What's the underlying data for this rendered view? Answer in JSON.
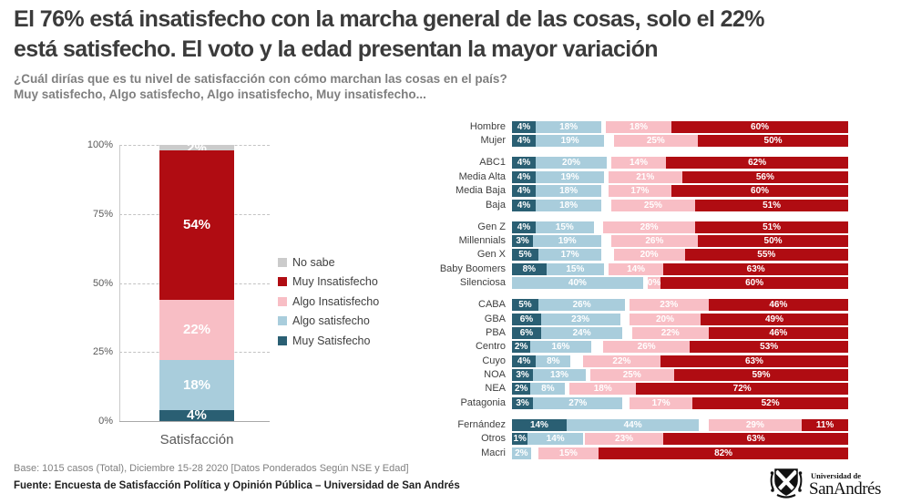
{
  "header": {
    "title_line1": "El 76% está insatisfecho con la marcha general de las cosas, solo el 22%",
    "title_line2": "está satisfecho. El voto y la edad presentan la mayor variación",
    "subtitle_line1": "¿Cuál dirías que es tu nivel de satisfacción con cómo marchan las cosas en el país?",
    "subtitle_line2": "Muy satisfecho, Algo satisfecho, Algo insatisfecho, Muy insatisfecho..."
  },
  "footer": {
    "base": "Base: 1015 casos (Total), Diciembre 15-28 2020 [Datos Ponderados Según NSE y Edad]",
    "fuente": "Fuente: Encuesta de Satisfacción Política y Opinión Pública – Universidad de San Andrés"
  },
  "logo": {
    "small": "Universidad de",
    "large": "SanAndrés",
    "icon": "university-crest-icon"
  },
  "colors": {
    "muy_satisfecho": "#2A5F73",
    "algo_satisfecho": "#A9CDDC",
    "algo_insatisfecho": "#F8BEC5",
    "muy_insatisfecho": "#B00C12",
    "no_sabe": "#CBCBCB"
  },
  "legend": [
    {
      "label": "No sabe",
      "color_key": "no_sabe"
    },
    {
      "label": "Muy Insatisfecho",
      "color_key": "muy_insatisfecho"
    },
    {
      "label": "Algo Insatisfecho",
      "color_key": "algo_insatisfecho"
    },
    {
      "label": "Algo satisfecho",
      "color_key": "algo_satisfecho"
    },
    {
      "label": "Muy Satisfecho",
      "color_key": "muy_satisfecho"
    }
  ],
  "chart_data": [
    {
      "type": "bar",
      "stacked": true,
      "title": "",
      "xlabel": "Satisfacción",
      "ylabel": "",
      "ylim": [
        0,
        100
      ],
      "yticks": [
        0,
        25,
        50,
        75,
        100
      ],
      "ytick_labels": [
        "0%",
        "25%",
        "50%",
        "75%",
        "100%"
      ],
      "grid": "dashed-horizontal",
      "legend_position": "right",
      "categories": [
        "Satisfacción"
      ],
      "series": [
        {
          "name": "Muy Satisfecho",
          "color_key": "muy_satisfecho",
          "values": [
            4
          ],
          "data_label": "4%"
        },
        {
          "name": "Algo satisfecho",
          "color_key": "algo_satisfecho",
          "values": [
            18
          ],
          "data_label": "18%"
        },
        {
          "name": "Algo Insatisfecho",
          "color_key": "algo_insatisfecho",
          "values": [
            22
          ],
          "data_label": "22%"
        },
        {
          "name": "Muy Insatisfecho",
          "color_key": "muy_insatisfecho",
          "values": [
            54
          ],
          "data_label": "54%"
        },
        {
          "name": "No sabe",
          "color_key": "no_sabe",
          "values": [
            2
          ],
          "data_label": "2%"
        }
      ]
    },
    {
      "type": "bar",
      "orientation": "horizontal",
      "stacked": true,
      "normalized": true,
      "series_names": [
        "Muy Satisfecho",
        "Algo satisfecho",
        "Algo Insatisfecho",
        "Muy Insatisfecho"
      ],
      "groups": [
        {
          "name": "genero",
          "rows": [
            {
              "label": "Hombre",
              "values": [
                4,
                18,
                18,
                60
              ],
              "labels": [
                "4%",
                "18%",
                "18%",
                "60%"
              ]
            },
            {
              "label": "Mujer",
              "values": [
                4,
                19,
                25,
                50
              ],
              "labels": [
                "4%",
                "19%",
                "25%",
                "50%"
              ]
            }
          ]
        },
        {
          "name": "nse",
          "rows": [
            {
              "label": "ABC1",
              "values": [
                4,
                20,
                14,
                62
              ],
              "labels": [
                "4%",
                "20%",
                "14%",
                "62%"
              ]
            },
            {
              "label": "Media Alta",
              "values": [
                4,
                19,
                21,
                56
              ],
              "labels": [
                "4%",
                "19%",
                "21%",
                "56%"
              ]
            },
            {
              "label": "Media Baja",
              "values": [
                4,
                18,
                17,
                60
              ],
              "labels": [
                "4%",
                "18%",
                "17%",
                "60%"
              ]
            },
            {
              "label": "Baja",
              "values": [
                4,
                18,
                25,
                51
              ],
              "labels": [
                "4%",
                "18%",
                "25%",
                "51%"
              ]
            }
          ]
        },
        {
          "name": "edad",
          "rows": [
            {
              "label": "Gen Z",
              "values": [
                4,
                15,
                28,
                51
              ],
              "labels": [
                "4%",
                "15%",
                "28%",
                "51%"
              ]
            },
            {
              "label": "Millennials",
              "values": [
                3,
                19,
                26,
                50
              ],
              "labels": [
                "3%",
                "19%",
                "26%",
                "50%"
              ]
            },
            {
              "label": "Gen X",
              "values": [
                5,
                17,
                20,
                55
              ],
              "labels": [
                "5%",
                "17%",
                "20%",
                "55%"
              ]
            },
            {
              "label": "Baby Boomers",
              "values": [
                8,
                15,
                14,
                63
              ],
              "labels": [
                "8%",
                "15%",
                "14%",
                "63%"
              ]
            },
            {
              "label": "Silenciosa",
              "values": [
                0,
                40,
                0,
                60
              ],
              "labels": [
                "",
                "40%",
                "0%",
                "60%"
              ]
            }
          ]
        },
        {
          "name": "region",
          "rows": [
            {
              "label": "CABA",
              "values": [
                5,
                26,
                23,
                46
              ],
              "labels": [
                "5%",
                "26%",
                "23%",
                "46%"
              ]
            },
            {
              "label": "GBA",
              "values": [
                6,
                23,
                20,
                49
              ],
              "labels": [
                "6%",
                "23%",
                "20%",
                "49%"
              ]
            },
            {
              "label": "PBA",
              "values": [
                6,
                24,
                22,
                46
              ],
              "labels": [
                "6%",
                "24%",
                "22%",
                "46%"
              ]
            },
            {
              "label": "Centro",
              "values": [
                2,
                16,
                26,
                53
              ],
              "labels": [
                "2%",
                "16%",
                "26%",
                "53%"
              ]
            },
            {
              "label": "Cuyo",
              "values": [
                4,
                8,
                22,
                63
              ],
              "labels": [
                "4%",
                "8%",
                "22%",
                "63%"
              ]
            },
            {
              "label": "NOA",
              "values": [
                3,
                13,
                25,
                59
              ],
              "labels": [
                "3%",
                "13%",
                "25%",
                "59%"
              ]
            },
            {
              "label": "NEA",
              "values": [
                2,
                8,
                18,
                72
              ],
              "labels": [
                "2%",
                "8%",
                "18%",
                "72%"
              ]
            },
            {
              "label": "Patagonia",
              "values": [
                3,
                27,
                17,
                52
              ],
              "labels": [
                "3%",
                "27%",
                "17%",
                "52%"
              ]
            }
          ]
        },
        {
          "name": "voto",
          "rows": [
            {
              "label": "Fernández",
              "values": [
                14,
                44,
                29,
                11
              ],
              "labels": [
                "14%",
                "44%",
                "29%",
                "11%"
              ]
            },
            {
              "label": "Otros",
              "values": [
                1,
                14,
                23,
                63
              ],
              "labels": [
                "1%",
                "14%",
                "23%",
                "63%"
              ]
            },
            {
              "label": "Macri",
              "values": [
                0,
                2,
                15,
                82
              ],
              "labels": [
                "",
                "2%",
                "15%",
                "82%"
              ]
            }
          ]
        }
      ]
    }
  ]
}
